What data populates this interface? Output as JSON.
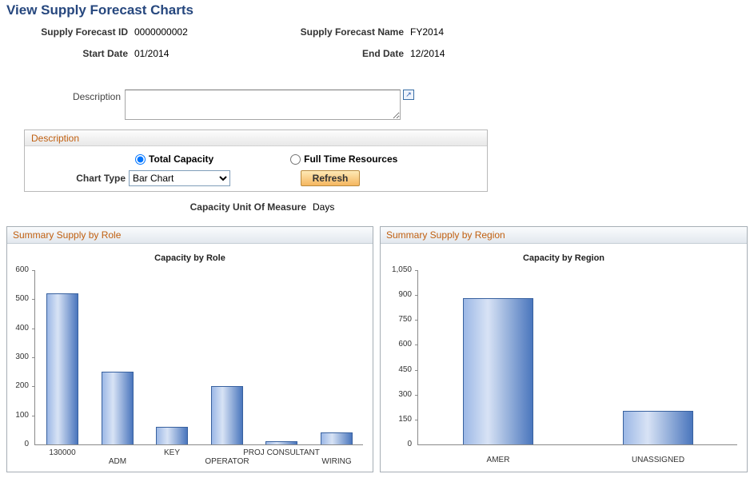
{
  "page": {
    "title": "View Supply Forecast Charts"
  },
  "fields": {
    "supply_forecast_id_label": "Supply Forecast ID",
    "supply_forecast_id": "0000000002",
    "supply_forecast_name_label": "Supply Forecast Name",
    "supply_forecast_name": "FY2014",
    "start_date_label": "Start Date",
    "start_date": "01/2014",
    "end_date_label": "End Date",
    "end_date": "12/2014",
    "description_label": "Description",
    "description_value": ""
  },
  "groupbox": {
    "title": "Description",
    "radio_total_capacity": "Total Capacity",
    "radio_full_time": "Full Time Resources",
    "selected_radio": "total_capacity",
    "chart_type_label": "Chart Type",
    "chart_type_value": "Bar Chart",
    "refresh_button": "Refresh",
    "uom_label": "Capacity Unit Of Measure",
    "uom_value": "Days"
  },
  "charts": {
    "left_header": "Summary Supply by Role",
    "right_header": "Summary Supply by Region"
  },
  "chart_data": [
    {
      "type": "bar",
      "title": "Capacity by Role",
      "categories": [
        "130000",
        "ADM",
        "KEY",
        "OPERATOR",
        "PROJ CONSULTANT",
        "WIRING"
      ],
      "values": [
        520,
        250,
        60,
        200,
        10,
        40
      ],
      "xlabel": "",
      "ylabel": "",
      "ylim": [
        0,
        600
      ],
      "ytick_step": 100,
      "grid": false,
      "legend": "none",
      "stagger_labels": true
    },
    {
      "type": "bar",
      "title": "Capacity by Region",
      "categories": [
        "AMER",
        "UNASSIGNED"
      ],
      "values": [
        880,
        200
      ],
      "xlabel": "",
      "ylabel": "",
      "ylim": [
        0,
        1050
      ],
      "ytick_step": 150,
      "grid": false,
      "legend": "none",
      "stagger_labels": false
    }
  ],
  "theme": {
    "title_color": "#26477e",
    "section_header_color": "#c05f10",
    "bar_light": "#9cb8e6",
    "bar_highlight": "#d8e3f5",
    "bar_dark": "#4a76bd",
    "bar_border": "#38619f"
  }
}
